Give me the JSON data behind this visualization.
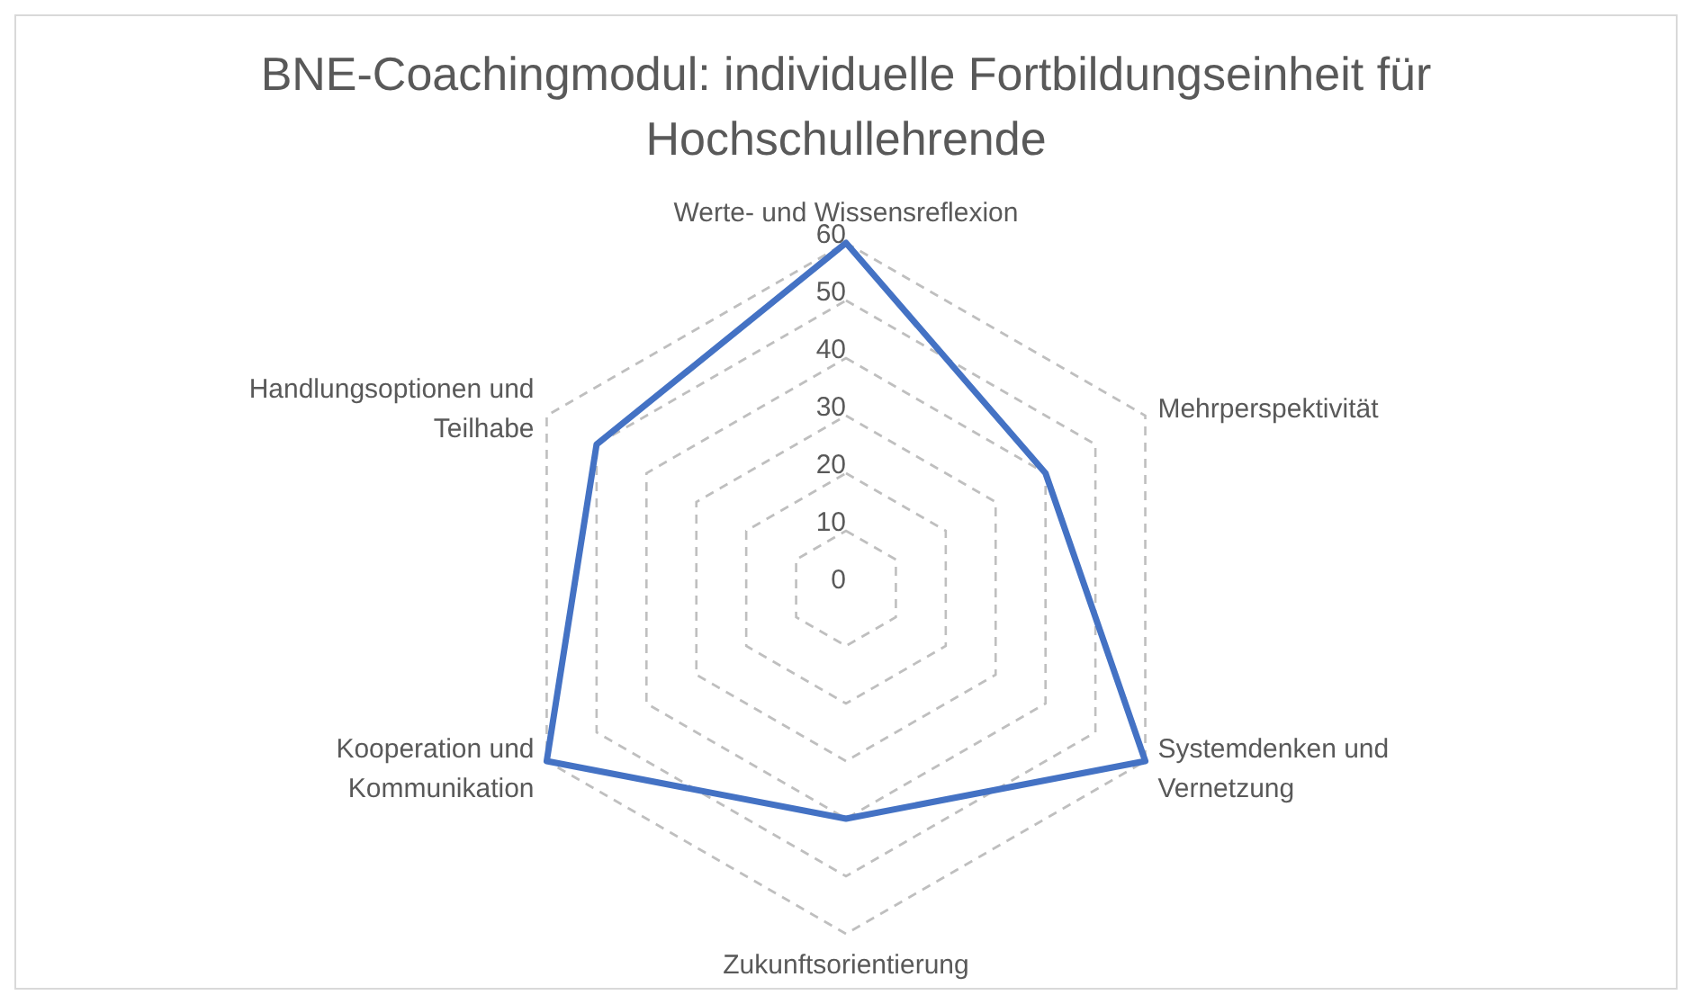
{
  "chart_data": {
    "type": "radar",
    "title": "BNE-Coachingmodul: individuelle Fortbildungseinheit für Hochschullehrende",
    "categories": [
      "Werte- und Wissensreflexion",
      "Mehrperspektivität",
      "Systemdenken und Vernetzung",
      "Zukunftsorientierung",
      "Kooperation und Kommunikation",
      "Handlungsoptionen und Teilhabe"
    ],
    "series": [
      {
        "color": "#4472c4",
        "values": [
          60,
          40,
          60,
          40,
          60,
          50
        ]
      }
    ],
    "ylim": [
      0,
      60
    ],
    "yticks": [
      0,
      10,
      20,
      30,
      40,
      50,
      60
    ],
    "grid": true,
    "legend": false,
    "marker": "none"
  }
}
